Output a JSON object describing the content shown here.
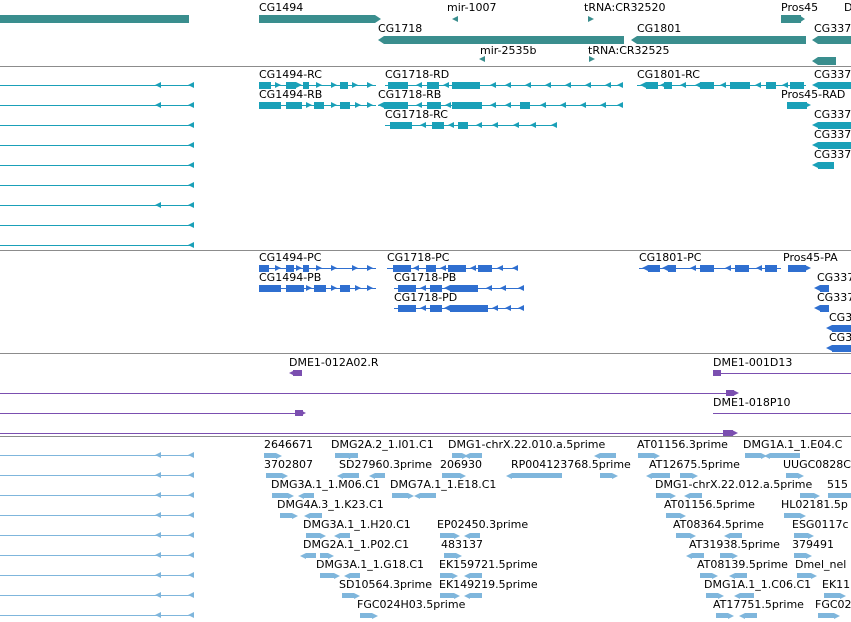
{
  "colors": {
    "teal_dark": "#3a8e8e",
    "teal": "#1aa0b8",
    "blue": "#2f6fd0",
    "purple": "#7b4fb0",
    "light_blue": "#7fb6dc",
    "divider": "#8c8c8c"
  },
  "tracks": {
    "genes": {
      "labels": [
        "CG1494",
        "mir-1007",
        "tRNA:CR32520",
        "Pros45",
        "D",
        "CG1718",
        "CG1801",
        "CG337",
        "mir-2535b",
        "tRNA:CR32525"
      ]
    },
    "transcripts_a": {
      "labels": [
        "CG1494-RC",
        "CG1718-RD",
        "CG1801-RC",
        "CG337",
        "CG1494-RB",
        "CG1718-RB",
        "Pros45-RAD",
        "CG1718-RC",
        "CG337",
        "CG337",
        "CG337"
      ]
    },
    "transcripts_b": {
      "labels": [
        "CG1494-PC",
        "CG1718-PC",
        "CG1801-PC",
        "Pros45-PA",
        "CG1494-PB",
        "CG1718-PB",
        "CG337",
        "CG337",
        "CG1718-PD",
        "CG3",
        "CG3"
      ]
    },
    "clones": {
      "labels": [
        "DME1-012A02.R",
        "DME1-001D13",
        "DME1-018P10"
      ]
    },
    "ests": {
      "labels": [
        "2646671",
        "DMG2A.2_1.I01.C1",
        "DMG1-chrX.22.010.a.5prime",
        "AT01156.3prime",
        "DMG1A.1_1.E04.C",
        "3702807",
        "SD27960.3prime",
        "206930",
        "RP004123768.5prime",
        "AT12675.5prime",
        "UUGC0828C",
        "DMG3A.1_1.M06.C1",
        "DMG7A.1_1.E18.C1",
        "DMG1-chrX.22.012.a.5prime",
        "515",
        "DMG4A.3_1.K23.C1",
        "AT01156.5prime",
        "HL02181.5p",
        "DMG3A.1_1.H20.C1",
        "EP02450.3prime",
        "AT08364.5prime",
        "ESG0117c",
        "DMG2A.1_1.P02.C1",
        "483137",
        "AT31938.5prime",
        "379491",
        "DMG3A.1_1.G18.C1",
        "EK159721.5prime",
        "AT08139.5prime",
        "Dmel_nel",
        "SD10564.3prime",
        "EK149219.5prime",
        "DMG1A.1_1.C06.C1",
        "EK11",
        "FGC024H03.5prime",
        "AT17751.5prime",
        "FGC02"
      ]
    }
  }
}
